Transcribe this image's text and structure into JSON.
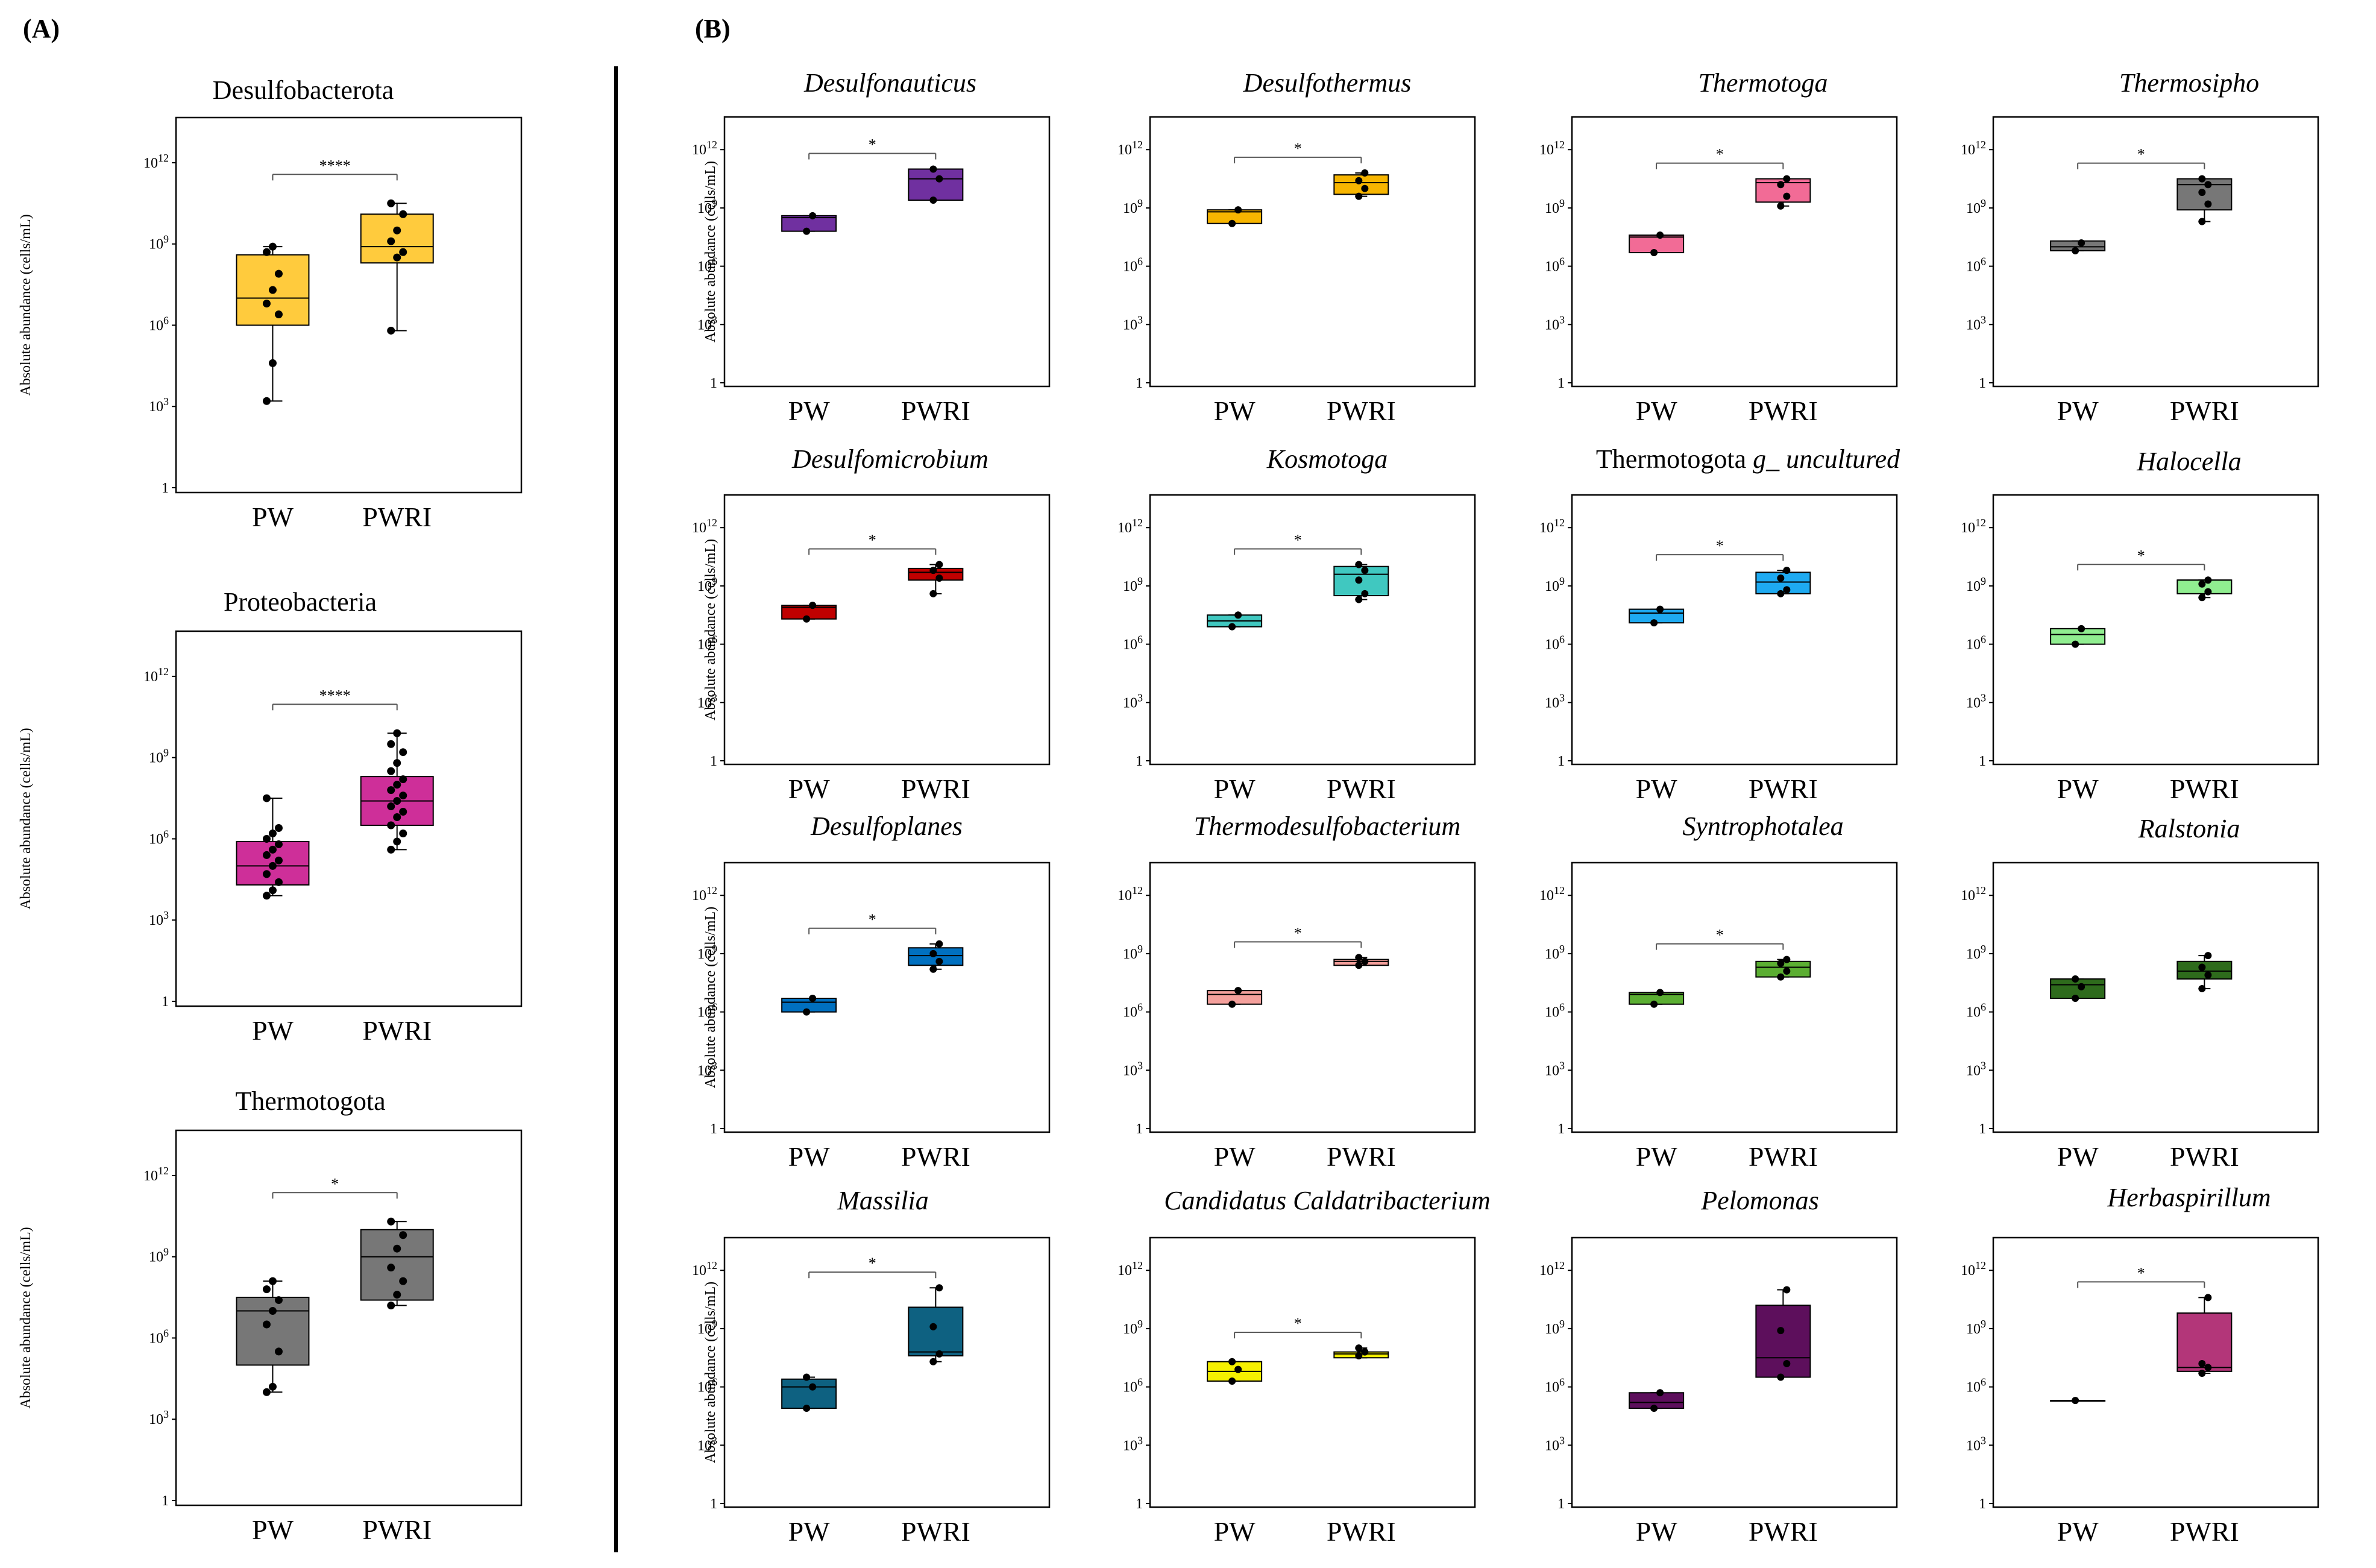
{
  "panel_labels": {
    "a": "(A)",
    "b": "(B)"
  },
  "axis": {
    "ylabel": "Absolute abundance (cells/mL)",
    "y_scale": "log10",
    "ylim_log10": [
      0,
      13
    ],
    "ticks": [
      {
        "base": "1",
        "exp": ""
      },
      {
        "base": "10",
        "exp": "3"
      },
      {
        "base": "10",
        "exp": "6"
      },
      {
        "base": "10",
        "exp": "9"
      },
      {
        "base": "10",
        "exp": "12"
      }
    ]
  },
  "chart_data": [
    {
      "id": "a-desulfobacterota",
      "type": "box",
      "title": "Desulfobacterota",
      "italic": false,
      "categories": [
        "PW",
        "PWRI"
      ],
      "significance": "****",
      "boxes": [
        {
          "color": "#FFCB3D",
          "q1": 6.0,
          "median": 7.0,
          "q3": 8.6,
          "whisker_low": 3.2,
          "whisker_high": 8.9,
          "points": [
            3.2,
            4.6,
            6.4,
            6.8,
            7.3,
            7.9,
            8.7,
            8.9
          ]
        },
        {
          "color": "#FFCB3D",
          "q1": 8.3,
          "median": 8.9,
          "q3": 10.1,
          "whisker_low": 5.8,
          "whisker_high": 10.5,
          "points": [
            5.8,
            8.5,
            8.7,
            9.1,
            9.5,
            10.1,
            10.5
          ]
        }
      ]
    },
    {
      "id": "a-proteobacteria",
      "type": "box",
      "title": "Proteobacteria",
      "italic": false,
      "categories": [
        "PW",
        "PWRI"
      ],
      "significance": "****",
      "boxes": [
        {
          "color": "#CE2F99",
          "q1": 4.3,
          "median": 5.0,
          "q3": 5.9,
          "whisker_low": 3.9,
          "whisker_high": 7.5,
          "points": [
            3.9,
            4.1,
            4.4,
            4.7,
            5.0,
            5.2,
            5.4,
            5.6,
            5.8,
            6.0,
            6.2,
            6.4,
            7.5
          ]
        },
        {
          "color": "#CE2F99",
          "q1": 6.5,
          "median": 7.4,
          "q3": 8.3,
          "whisker_low": 5.6,
          "whisker_high": 9.9,
          "points": [
            5.6,
            5.9,
            6.2,
            6.5,
            6.8,
            7.0,
            7.2,
            7.4,
            7.6,
            7.8,
            8.0,
            8.2,
            8.5,
            8.8,
            9.2,
            9.5,
            9.9
          ]
        }
      ]
    },
    {
      "id": "a-thermotogota",
      "type": "box",
      "title": "Thermotogota",
      "italic": false,
      "categories": [
        "PW",
        "PWRI"
      ],
      "significance": "*",
      "boxes": [
        {
          "color": "#777777",
          "q1": 5.0,
          "median": 7.0,
          "q3": 7.5,
          "whisker_low": 4.0,
          "whisker_high": 8.1,
          "points": [
            4.0,
            4.2,
            5.5,
            6.5,
            7.0,
            7.4,
            7.8,
            8.1
          ]
        },
        {
          "color": "#777777",
          "q1": 7.4,
          "median": 9.0,
          "q3": 10.0,
          "whisker_low": 7.2,
          "whisker_high": 10.3,
          "points": [
            7.2,
            7.6,
            8.1,
            8.6,
            9.3,
            9.8,
            10.3
          ]
        }
      ]
    },
    {
      "id": "b-desulfonauticus",
      "type": "box",
      "title": "Desulfonauticus",
      "italic": true,
      "categories": [
        "PW",
        "PWRI"
      ],
      "significance": "*",
      "boxes": [
        {
          "color": "#7030A0",
          "q1": 7.8,
          "median": 8.5,
          "q3": 8.6,
          "whisker_low": 7.8,
          "whisker_high": 8.6,
          "points": [
            7.8,
            8.6
          ]
        },
        {
          "color": "#7030A0",
          "q1": 9.4,
          "median": 10.5,
          "q3": 11.0,
          "whisker_low": 9.4,
          "whisker_high": 11.0,
          "points": [
            9.4,
            10.5,
            11.0
          ]
        }
      ]
    },
    {
      "id": "b-desulfothermus",
      "type": "box",
      "title": "Desulfothermus",
      "italic": true,
      "categories": [
        "PW",
        "PWRI"
      ],
      "significance": "*",
      "boxes": [
        {
          "color": "#F7B500",
          "q1": 8.2,
          "median": 8.8,
          "q3": 8.9,
          "whisker_low": 8.2,
          "whisker_high": 8.9,
          "points": [
            8.2,
            8.9
          ]
        },
        {
          "color": "#F7B500",
          "q1": 9.7,
          "median": 10.3,
          "q3": 10.7,
          "whisker_low": 9.6,
          "whisker_high": 10.8,
          "points": [
            9.6,
            10.0,
            10.4,
            10.8
          ]
        }
      ]
    },
    {
      "id": "b-thermotoga",
      "type": "box",
      "title": "Thermotoga",
      "italic": true,
      "categories": [
        "PW",
        "PWRI"
      ],
      "significance": "*",
      "boxes": [
        {
          "color": "#F26B96",
          "q1": 6.7,
          "median": 7.5,
          "q3": 7.6,
          "whisker_low": 6.7,
          "whisker_high": 7.6,
          "points": [
            6.7,
            7.6
          ]
        },
        {
          "color": "#F26B96",
          "q1": 9.3,
          "median": 10.3,
          "q3": 10.5,
          "whisker_low": 9.1,
          "whisker_high": 10.5,
          "points": [
            9.1,
            9.6,
            10.2,
            10.5
          ]
        }
      ]
    },
    {
      "id": "b-thermosipho",
      "type": "box",
      "title": "Thermosipho",
      "italic": true,
      "categories": [
        "PW",
        "PWRI"
      ],
      "significance": "*",
      "boxes": [
        {
          "color": "#777777",
          "q1": 6.8,
          "median": 7.0,
          "q3": 7.3,
          "whisker_low": 6.8,
          "whisker_high": 7.3,
          "points": [
            6.8,
            7.2
          ]
        },
        {
          "color": "#777777",
          "q1": 8.9,
          "median": 10.2,
          "q3": 10.5,
          "whisker_low": 8.3,
          "whisker_high": 10.5,
          "points": [
            8.3,
            9.2,
            9.8,
            10.2,
            10.5
          ]
        }
      ]
    },
    {
      "id": "b-desulfomicrobium",
      "type": "box",
      "title": "Desulfomicrobium",
      "italic": true,
      "categories": [
        "PW",
        "PWRI"
      ],
      "significance": "*",
      "boxes": [
        {
          "color": "#C00000",
          "q1": 7.3,
          "median": 7.9,
          "q3": 8.0,
          "whisker_low": 7.3,
          "whisker_high": 8.0,
          "points": [
            7.3,
            8.0
          ]
        },
        {
          "color": "#C00000",
          "q1": 9.3,
          "median": 9.7,
          "q3": 9.9,
          "whisker_low": 8.6,
          "whisker_high": 10.1,
          "points": [
            8.6,
            9.4,
            9.8,
            10.1
          ]
        }
      ]
    },
    {
      "id": "b-kosmotoga",
      "type": "box",
      "title": "Kosmotoga",
      "italic": true,
      "categories": [
        "PW",
        "PWRI"
      ],
      "significance": "*",
      "boxes": [
        {
          "color": "#40C8C0",
          "q1": 6.9,
          "median": 7.2,
          "q3": 7.5,
          "whisker_low": 6.9,
          "whisker_high": 7.5,
          "points": [
            6.9,
            7.5
          ]
        },
        {
          "color": "#40C8C0",
          "q1": 8.5,
          "median": 9.6,
          "q3": 10.0,
          "whisker_low": 8.3,
          "whisker_high": 10.1,
          "points": [
            8.3,
            8.6,
            9.3,
            9.8,
            10.1
          ]
        }
      ]
    },
    {
      "id": "b-thermotogota-uncultured",
      "type": "box",
      "title": "Thermotogota g_ uncultured",
      "title_parts": {
        "roman": "Thermotogota ",
        "italic": "g_ uncultured"
      },
      "italic": false,
      "categories": [
        "PW",
        "PWRI"
      ],
      "significance": "*",
      "boxes": [
        {
          "color": "#1EAAF1",
          "q1": 7.1,
          "median": 7.6,
          "q3": 7.8,
          "whisker_low": 7.1,
          "whisker_high": 7.8,
          "points": [
            7.1,
            7.8
          ]
        },
        {
          "color": "#1EAAF1",
          "q1": 8.6,
          "median": 9.2,
          "q3": 9.7,
          "whisker_low": 8.6,
          "whisker_high": 9.8,
          "points": [
            8.6,
            8.8,
            9.4,
            9.8
          ]
        }
      ]
    },
    {
      "id": "b-halocella",
      "type": "box",
      "title": "Halocella",
      "italic": true,
      "categories": [
        "PW",
        "PWRI"
      ],
      "significance": "*",
      "boxes": [
        {
          "color": "#90EE90",
          "q1": 6.0,
          "median": 6.5,
          "q3": 6.8,
          "whisker_low": 6.0,
          "whisker_high": 6.8,
          "points": [
            6.0,
            6.8
          ]
        },
        {
          "color": "#90EE90",
          "q1": 8.6,
          "median": 9.3,
          "q3": 9.3,
          "whisker_low": 8.4,
          "whisker_high": 9.3,
          "points": [
            8.4,
            8.7,
            9.1,
            9.3
          ]
        }
      ]
    },
    {
      "id": "b-desulfoplanes",
      "type": "box",
      "title": "Desulfoplanes",
      "italic": true,
      "categories": [
        "PW",
        "PWRI"
      ],
      "significance": "*",
      "boxes": [
        {
          "color": "#0070C0",
          "q1": 6.0,
          "median": 6.5,
          "q3": 6.7,
          "whisker_low": 6.0,
          "whisker_high": 6.7,
          "points": [
            6.0,
            6.7
          ]
        },
        {
          "color": "#0070C0",
          "q1": 8.4,
          "median": 8.9,
          "q3": 9.3,
          "whisker_low": 8.2,
          "whisker_high": 9.5,
          "points": [
            8.2,
            8.6,
            9.0,
            9.5
          ]
        }
      ]
    },
    {
      "id": "b-thermodesulfobacterium",
      "type": "box",
      "title": "Thermodesulfobacterium",
      "italic": true,
      "categories": [
        "PW",
        "PWRI"
      ],
      "significance": "*",
      "boxes": [
        {
          "color": "#F4A09C",
          "q1": 6.4,
          "median": 6.9,
          "q3": 7.1,
          "whisker_low": 6.4,
          "whisker_high": 7.1,
          "points": [
            6.4,
            7.1
          ]
        },
        {
          "color": "#F4A09C",
          "q1": 8.4,
          "median": 8.6,
          "q3": 8.7,
          "whisker_low": 8.4,
          "whisker_high": 8.8,
          "points": [
            8.4,
            8.6,
            8.8
          ]
        }
      ]
    },
    {
      "id": "b-syntrophotalea",
      "type": "box",
      "title": "Syntrophotalea",
      "italic": true,
      "categories": [
        "PW",
        "PWRI"
      ],
      "significance": "*",
      "boxes": [
        {
          "color": "#5BAE32",
          "q1": 6.4,
          "median": 6.9,
          "q3": 7.0,
          "whisker_low": 6.4,
          "whisker_high": 7.0,
          "points": [
            6.4,
            7.0
          ]
        },
        {
          "color": "#5BAE32",
          "q1": 7.8,
          "median": 8.3,
          "q3": 8.6,
          "whisker_low": 7.8,
          "whisker_high": 8.7,
          "points": [
            7.8,
            8.1,
            8.5,
            8.7
          ]
        }
      ]
    },
    {
      "id": "b-ralstonia",
      "type": "box",
      "title": "Ralstonia",
      "italic": true,
      "categories": [
        "PW",
        "PWRI"
      ],
      "significance": "",
      "boxes": [
        {
          "color": "#2E6B1C",
          "q1": 6.7,
          "median": 7.4,
          "q3": 7.7,
          "whisker_low": 6.7,
          "whisker_high": 7.7,
          "points": [
            6.7,
            7.3,
            7.7
          ]
        },
        {
          "color": "#2E6B1C",
          "q1": 7.7,
          "median": 8.1,
          "q3": 8.6,
          "whisker_low": 7.2,
          "whisker_high": 8.9,
          "points": [
            7.2,
            7.9,
            8.3,
            8.9
          ]
        }
      ]
    },
    {
      "id": "b-massilia",
      "type": "box",
      "title": "Massilia",
      "italic": true,
      "categories": [
        "PW",
        "PWRI"
      ],
      "significance": "*",
      "boxes": [
        {
          "color": "#0E6181",
          "q1": 4.9,
          "median": 6.0,
          "q3": 6.4,
          "whisker_low": 4.9,
          "whisker_high": 6.5,
          "points": [
            4.9,
            6.0,
            6.5
          ]
        },
        {
          "color": "#0E6181",
          "q1": 7.6,
          "median": 7.8,
          "q3": 10.1,
          "whisker_low": 7.3,
          "whisker_high": 11.1,
          "points": [
            7.3,
            7.7,
            9.1,
            11.1
          ]
        }
      ]
    },
    {
      "id": "b-candidatus-caldatribacterium",
      "type": "box",
      "title": "Candidatus Caldatribacterium",
      "italic": true,
      "categories": [
        "PW",
        "PWRI"
      ],
      "significance": "*",
      "boxes": [
        {
          "color": "#F5F000",
          "q1": 6.3,
          "median": 6.8,
          "q3": 7.3,
          "whisker_low": 6.3,
          "whisker_high": 7.3,
          "points": [
            6.3,
            6.9,
            7.3
          ]
        },
        {
          "color": "#F5F000",
          "q1": 7.5,
          "median": 7.7,
          "q3": 7.8,
          "whisker_low": 7.5,
          "whisker_high": 8.0,
          "points": [
            7.6,
            7.8,
            8.0
          ]
        }
      ]
    },
    {
      "id": "b-pelomonas",
      "type": "box",
      "title": "Pelomonas",
      "italic": true,
      "categories": [
        "PW",
        "PWRI"
      ],
      "significance": "",
      "boxes": [
        {
          "color": "#5D0F5C",
          "q1": 4.9,
          "median": 5.2,
          "q3": 5.7,
          "whisker_low": 4.9,
          "whisker_high": 5.7,
          "points": [
            4.9,
            5.7
          ]
        },
        {
          "color": "#5D0F5C",
          "q1": 6.5,
          "median": 7.5,
          "q3": 10.2,
          "whisker_low": 6.5,
          "whisker_high": 11.0,
          "points": [
            6.5,
            7.2,
            8.9,
            11.0
          ]
        }
      ]
    },
    {
      "id": "b-herbaspirillum",
      "type": "box",
      "title": "Herbaspirillum",
      "italic": true,
      "categories": [
        "PW",
        "PWRI"
      ],
      "significance": "*",
      "boxes": [
        {
          "color": "#B33679",
          "q1": 5.3,
          "median": 5.3,
          "q3": 5.3,
          "whisker_low": 5.3,
          "whisker_high": 5.3,
          "points": [
            5.3
          ]
        },
        {
          "color": "#B33679",
          "q1": 6.8,
          "median": 7.0,
          "q3": 9.8,
          "whisker_low": 6.7,
          "whisker_high": 10.6,
          "points": [
            6.7,
            7.0,
            7.2,
            10.6
          ]
        }
      ]
    }
  ]
}
